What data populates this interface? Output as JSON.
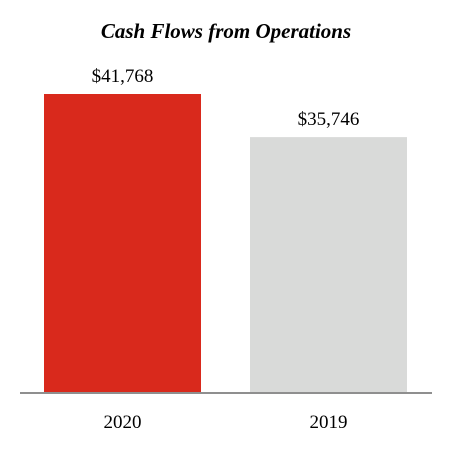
{
  "chart_data": {
    "type": "bar",
    "title": "Cash Flows from Operations",
    "xlabel": "",
    "ylabel": "",
    "categories": [
      "2020",
      "2019"
    ],
    "values": [
      41768,
      35746
    ],
    "value_labels": [
      "$41,768",
      "$35,746"
    ],
    "ylim": [
      0,
      41768
    ],
    "grid": false,
    "legend": "none",
    "colors": {
      "bars": [
        "#d9291c",
        "#d9dad9"
      ],
      "axis": "#8f8f8f",
      "text": "#000000"
    }
  }
}
